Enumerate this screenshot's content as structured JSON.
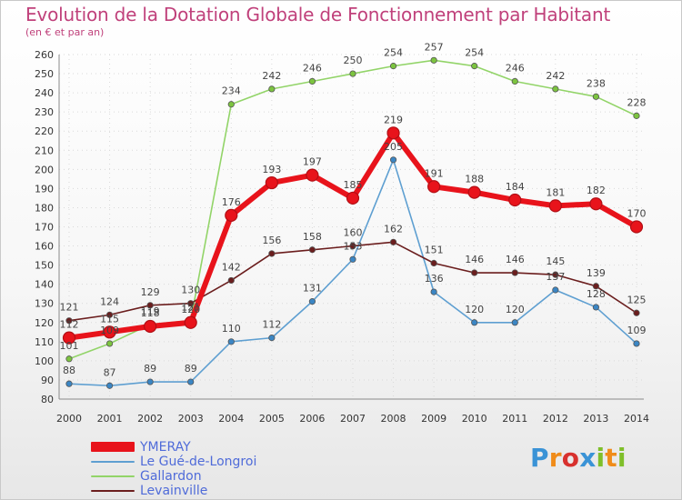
{
  "header": {
    "title": "Evolution de la Dotation Globale de Fonctionnement par Habitant",
    "subtitle": "(en € et par an)"
  },
  "brand": {
    "text": "Proxiti",
    "letters": [
      {
        "char": "P",
        "color": "#3a93d6"
      },
      {
        "char": "r",
        "color": "#f08c1a"
      },
      {
        "char": "o",
        "color": "#d8312e"
      },
      {
        "char": "x",
        "color": "#3a93d6"
      },
      {
        "char": "i",
        "color": "#7fbf2a"
      },
      {
        "char": "t",
        "color": "#f08c1a"
      },
      {
        "char": "i",
        "color": "#7fbf2a"
      }
    ]
  },
  "chart_data": {
    "type": "line",
    "title": "Evolution de la Dotation Globale de Fonctionnement par Habitant",
    "subtitle": "(en € et par an)",
    "xlabel": "",
    "ylabel": "",
    "x": [
      2000,
      2001,
      2002,
      2003,
      2004,
      2005,
      2006,
      2007,
      2008,
      2009,
      2010,
      2011,
      2012,
      2013,
      2014
    ],
    "x_tick_labels": [
      "2000",
      "2001",
      "2002",
      "2003",
      "2004",
      "2005",
      "2006",
      "2007",
      "2008",
      "2009",
      "2010",
      "2011",
      "2012",
      "2013",
      "2014"
    ],
    "ylim": [
      80,
      260
    ],
    "y_ticks": [
      80,
      90,
      100,
      110,
      120,
      130,
      140,
      150,
      160,
      170,
      180,
      190,
      200,
      210,
      220,
      230,
      240,
      250,
      260
    ],
    "grid": true,
    "legend_position": "bottom-left",
    "series": [
      {
        "name": "YMERAY",
        "color": "#e8131b",
        "markerColor": "#e8131b",
        "values": [
          112,
          115,
          118,
          120,
          176,
          193,
          197,
          185,
          219,
          191,
          188,
          184,
          181,
          182,
          170
        ]
      },
      {
        "name": "Le Gué-de-Longroi",
        "color": "#5e9fd1",
        "markerColor": "#3b86c4",
        "values": [
          88,
          87,
          89,
          89,
          110,
          112,
          131,
          153,
          205,
          136,
          120,
          120,
          137,
          128,
          109
        ]
      },
      {
        "name": "Gallardon",
        "color": "#92d468",
        "markerColor": "#7cc43f",
        "values": [
          101,
          109,
          119,
          121,
          234,
          242,
          246,
          250,
          254,
          257,
          254,
          246,
          242,
          238,
          228
        ]
      },
      {
        "name": "Levainville",
        "color": "#6b1e1e",
        "markerColor": "#6b1e1e",
        "values": [
          121,
          124,
          129,
          130,
          142,
          156,
          158,
          160,
          162,
          151,
          146,
          146,
          145,
          139,
          125
        ]
      }
    ],
    "data_labels": [
      [
        "112",
        "115",
        "118",
        "120",
        "176",
        "193",
        "197",
        "185",
        "219",
        "191",
        "188",
        "184",
        "181",
        "182",
        "170"
      ],
      [
        "88",
        "87",
        "89",
        "89",
        "110",
        "112",
        "131",
        "153",
        "205",
        "136",
        "120",
        "120",
        "137",
        "128",
        "109"
      ],
      [
        "101",
        "109",
        "119",
        "121",
        "234",
        "242",
        "246",
        "250",
        "254",
        "257",
        "254",
        "246",
        "242",
        "238",
        "228"
      ],
      [
        "121",
        "124",
        "129",
        "130",
        "142",
        "156",
        "158",
        "160",
        "162",
        "151",
        "146",
        "146",
        "145",
        "139",
        "125"
      ]
    ]
  }
}
